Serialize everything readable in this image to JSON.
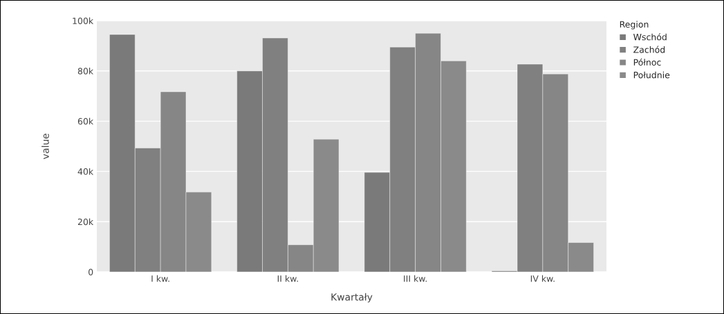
{
  "chart_data": {
    "type": "bar",
    "xlabel": "Kwartały",
    "ylabel": "value",
    "legend_title": "Region",
    "categories": [
      "I kw.",
      "II kw.",
      "III kw.",
      "IV kw."
    ],
    "series": [
      {
        "name": "Wschód",
        "color": "#7a7a7a",
        "values": [
          94500,
          80000,
          39600,
          400
        ]
      },
      {
        "name": "Zachód",
        "color": "#808080",
        "values": [
          49300,
          93100,
          89500,
          82700
        ]
      },
      {
        "name": "Północ",
        "color": "#868686",
        "values": [
          71700,
          10800,
          95000,
          78800
        ]
      },
      {
        "name": "Południe",
        "color": "#8a8a8a",
        "values": [
          31800,
          52800,
          84000,
          11700
        ]
      }
    ],
    "ylim": [
      0,
      100000
    ],
    "yticks": [
      {
        "value": 0,
        "label": "0"
      },
      {
        "value": 20000,
        "label": "20k"
      },
      {
        "value": 40000,
        "label": "40k"
      },
      {
        "value": 60000,
        "label": "60k"
      },
      {
        "value": 80000,
        "label": "80k"
      },
      {
        "value": 100000,
        "label": "100k"
      }
    ],
    "grid": "y",
    "legend": "top right"
  }
}
